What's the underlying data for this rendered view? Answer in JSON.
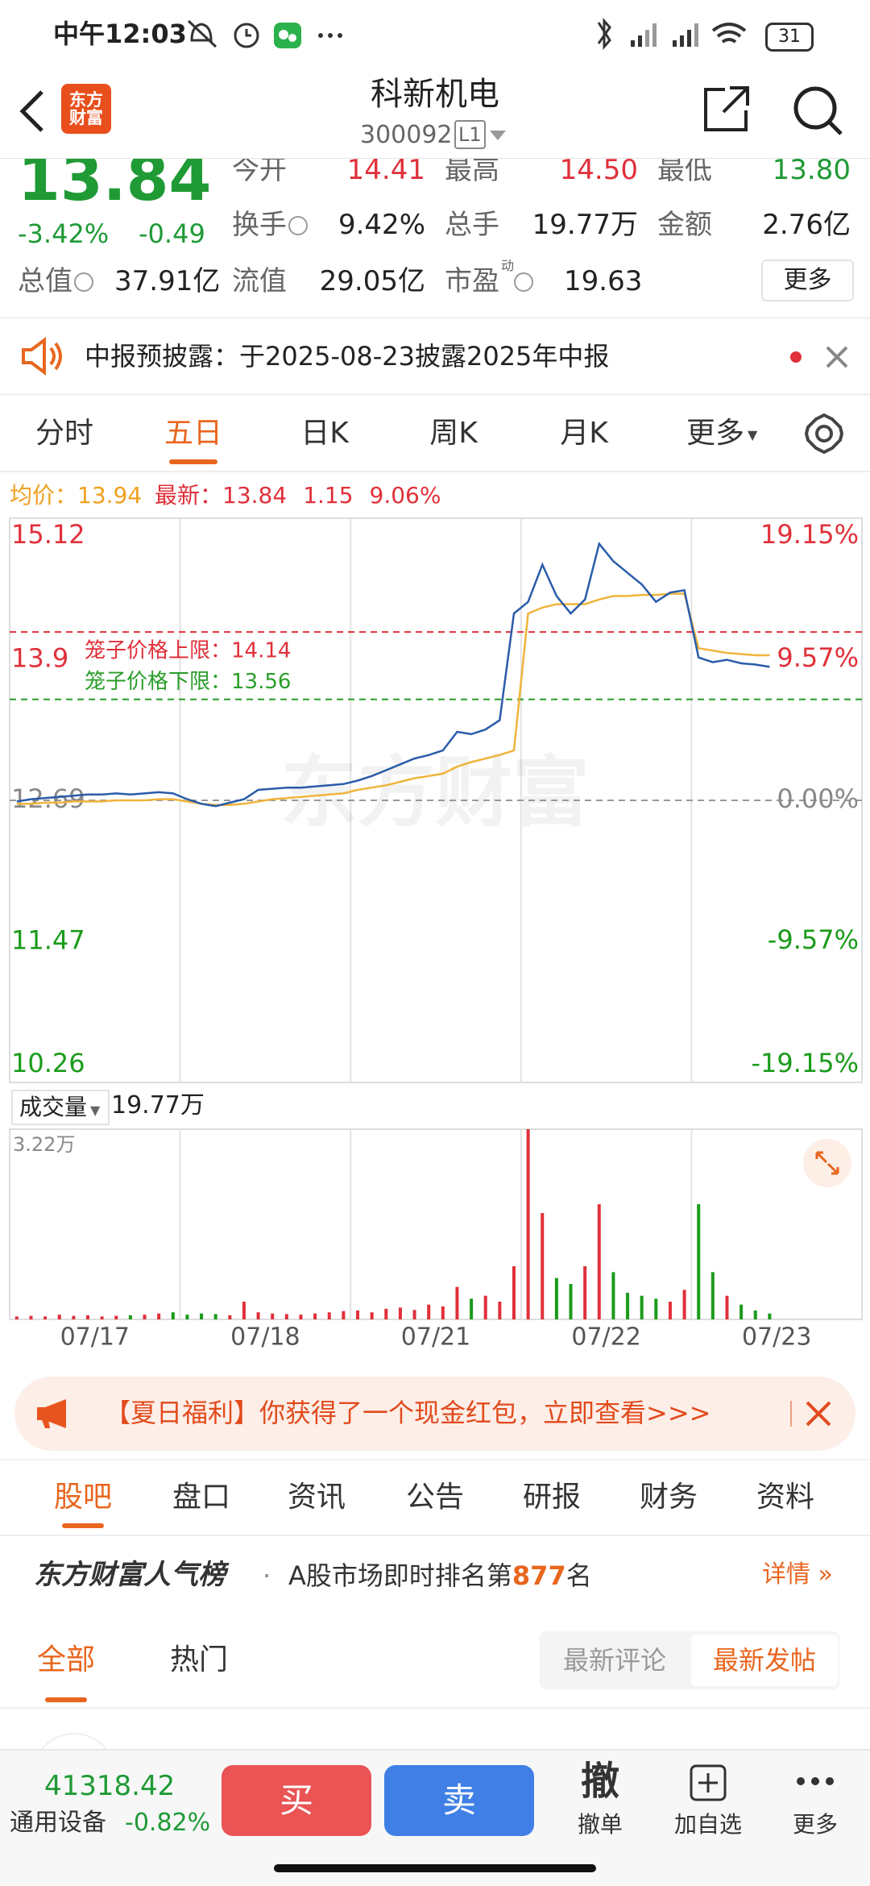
{
  "status_bar": {
    "time": "中午12:03",
    "battery": "31"
  },
  "header": {
    "logo": "东方财富",
    "title": "科新机电",
    "code": "300092",
    "level": "L1"
  },
  "quote": {
    "price": "13.84",
    "change_pct": "-3.42%",
    "change": "-0.49",
    "color": "#1f9a35",
    "fields": [
      {
        "label": "今开",
        "value": "14.41",
        "color": "#e0303a"
      },
      {
        "label": "最高",
        "value": "14.50",
        "color": "#e0303a"
      },
      {
        "label": "最低",
        "value": "13.80",
        "color": "#1f9a35"
      },
      {
        "label": "换手",
        "value": "9.42%",
        "color": "#222222"
      },
      {
        "label": "总手",
        "value": "19.77万",
        "color": "#222222"
      },
      {
        "label": "金额",
        "value": "2.76亿",
        "color": "#222222"
      },
      {
        "label": "总值",
        "value": "37.91亿",
        "color": "#222222"
      },
      {
        "label": "流值",
        "value": "29.05亿",
        "color": "#222222"
      },
      {
        "label": "市盈",
        "sup": "动",
        "value": "19.63",
        "color": "#222222"
      }
    ],
    "more": "更多"
  },
  "notice": {
    "text": "中报预披露：于2025-08-23披露2025年中报"
  },
  "chart_tabs": {
    "items": [
      "分时",
      "五日",
      "日K",
      "周K",
      "月K",
      "更多"
    ],
    "active": 1
  },
  "chart_info": {
    "avg_label": "均价：",
    "avg": "13.94",
    "last_label": "最新：",
    "last": "13.84",
    "change": "1.15",
    "change_pct": "9.06%"
  },
  "chart_data": [
    {
      "type": "line",
      "watermark": "东方财富",
      "xlim": [
        0,
        60
      ],
      "ylim": [
        10.26,
        15.12
      ],
      "yticks": [
        15.12,
        13.9,
        12.69,
        11.47,
        10.26
      ],
      "y2lim": [
        -19.15,
        19.15
      ],
      "y2ticks": [
        {
          "value": 19.15,
          "label": "19.15%"
        },
        {
          "value": 9.57,
          "label": "9.57%"
        },
        {
          "value": 0,
          "label": "0.00%"
        },
        {
          "value": -9.57,
          "label": "-9.57%"
        },
        {
          "value": -19.15,
          "label": "-19.15%"
        }
      ],
      "base": 12.69,
      "limits": [
        {
          "label": "笼子价格上限：14.14",
          "value": 14.14,
          "color": "#e0303a"
        },
        {
          "label": "笼子价格下限：13.56",
          "value": 13.56,
          "color": "#2a9d2a"
        }
      ],
      "series": [
        {
          "color": "#2a5caa",
          "values": [
            12.68,
            12.7,
            12.71,
            12.72,
            12.73,
            12.74,
            12.74,
            12.75,
            12.74,
            12.75,
            12.76,
            12.75,
            12.7,
            12.66,
            12.64,
            12.67,
            12.7,
            12.78,
            12.79,
            12.8,
            12.8,
            12.81,
            12.82,
            12.83,
            12.86,
            12.9,
            12.95,
            13.0,
            13.05,
            13.08,
            13.12,
            13.28,
            13.26,
            13.3,
            13.38,
            14.3,
            14.4,
            14.72,
            14.45,
            14.3,
            14.42,
            14.9,
            14.75,
            14.65,
            14.55,
            14.4,
            14.48,
            14.5,
            13.92,
            13.88,
            13.9,
            13.87,
            13.86,
            13.84
          ]
        },
        {
          "color": "#f0b43c",
          "values": [
            12.66,
            12.66,
            12.67,
            12.67,
            12.68,
            12.68,
            12.68,
            12.69,
            12.69,
            12.69,
            12.7,
            12.7,
            12.68,
            12.66,
            12.65,
            12.65,
            12.66,
            12.68,
            12.7,
            12.71,
            12.72,
            12.73,
            12.74,
            12.75,
            12.78,
            12.8,
            12.82,
            12.85,
            12.88,
            12.9,
            12.92,
            12.98,
            13.02,
            13.05,
            13.08,
            13.12,
            14.3,
            14.35,
            14.38,
            14.38,
            14.38,
            14.42,
            14.45,
            14.45,
            14.46,
            14.46,
            14.47,
            14.47,
            14.0,
            13.98,
            13.96,
            13.95,
            13.94,
            13.94
          ]
        }
      ]
    },
    {
      "type": "bar",
      "label": "成交量",
      "total": "19.77万",
      "xlim": [
        0,
        60
      ],
      "ylim": [
        0,
        3.22
      ],
      "yticks": [
        {
          "value": 3.22,
          "label": "3.22万"
        }
      ],
      "xticks": [
        {
          "value": 6,
          "label": "07/17"
        },
        {
          "value": 18,
          "label": "07/18"
        },
        {
          "value": 30,
          "label": "07/21"
        },
        {
          "value": 42,
          "label": "07/22"
        },
        {
          "value": 54,
          "label": "07/23"
        }
      ],
      "colors": {
        "up": "#e0303a",
        "down": "#1a9b1a"
      },
      "values": [
        0.05,
        0.06,
        0.05,
        0.08,
        0.06,
        0.07,
        0.05,
        0.06,
        0.07,
        0.08,
        0.1,
        0.12,
        0.08,
        0.1,
        0.09,
        0.07,
        0.3,
        0.12,
        0.1,
        0.09,
        0.08,
        0.1,
        0.12,
        0.14,
        0.15,
        0.12,
        0.18,
        0.2,
        0.16,
        0.25,
        0.22,
        0.55,
        0.35,
        0.4,
        0.3,
        0.9,
        3.22,
        1.8,
        0.7,
        0.6,
        0.9,
        1.95,
        0.8,
        0.45,
        0.4,
        0.35,
        0.3,
        0.5,
        1.95,
        0.8,
        0.4,
        0.25,
        0.15,
        0.1
      ]
    }
  ],
  "banner": {
    "text": "【夏日福利】你获得了一个现金红包，立即查看>>>"
  },
  "tabs": {
    "items": [
      "股吧",
      "盘口",
      "资讯",
      "公告",
      "研报",
      "财务",
      "资料"
    ],
    "active": 0
  },
  "rank": {
    "title": "东方财富人气榜",
    "prefix": "A股市场即时排名第",
    "rank": "877",
    "suffix": "名",
    "detail": "详情"
  },
  "filter": {
    "items": [
      "全部",
      "热门"
    ],
    "active": 0,
    "sort": [
      "最新评论",
      "最新发帖"
    ],
    "sort_active": 1
  },
  "bottom_bar": {
    "index_value": "41318.42",
    "index_name": "通用设备",
    "index_change": "-0.82%",
    "buy": "买",
    "sell": "卖",
    "cancel_icon": "撤",
    "cancel": "撤单",
    "watch": "加自选",
    "more": "更多"
  }
}
